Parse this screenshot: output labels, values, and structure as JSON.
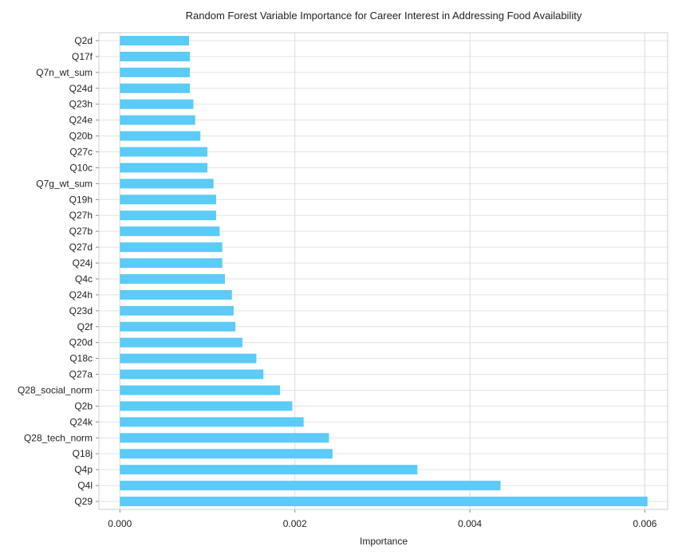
{
  "chart_data": {
    "type": "bar",
    "orientation": "horizontal",
    "title": "Random Forest Variable Importance for Career Interest in Addressing Food Availability",
    "xlabel": "Importance",
    "ylabel": "",
    "xlim": [
      -0.00024,
      0.00626
    ],
    "xticks": [
      0.0,
      0.002,
      0.004,
      0.006
    ],
    "xtick_labels": [
      "0.000",
      "0.002",
      "0.004",
      "0.006"
    ],
    "grid": true,
    "bar_color": "#5bcbf7",
    "categories": [
      "Q2d",
      "Q17f",
      "Q7n_wt_sum",
      "Q24d",
      "Q23h",
      "Q24e",
      "Q20b",
      "Q27c",
      "Q10c",
      "Q7g_wt_sum",
      "Q19h",
      "Q27h",
      "Q27b",
      "Q27d",
      "Q24j",
      "Q4c",
      "Q24h",
      "Q23d",
      "Q2f",
      "Q20d",
      "Q18c",
      "Q27a",
      "Q28_social_norm",
      "Q2b",
      "Q24k",
      "Q28_tech_norm",
      "Q18j",
      "Q4p",
      "Q4l",
      "Q29"
    ],
    "values": [
      0.00079,
      0.0008,
      0.0008,
      0.0008,
      0.00084,
      0.00086,
      0.00092,
      0.001,
      0.001,
      0.00107,
      0.0011,
      0.0011,
      0.00114,
      0.00117,
      0.00117,
      0.0012,
      0.00128,
      0.0013,
      0.00132,
      0.0014,
      0.00156,
      0.00164,
      0.00183,
      0.00197,
      0.0021,
      0.00239,
      0.00243,
      0.0034,
      0.00435,
      0.00603
    ]
  }
}
